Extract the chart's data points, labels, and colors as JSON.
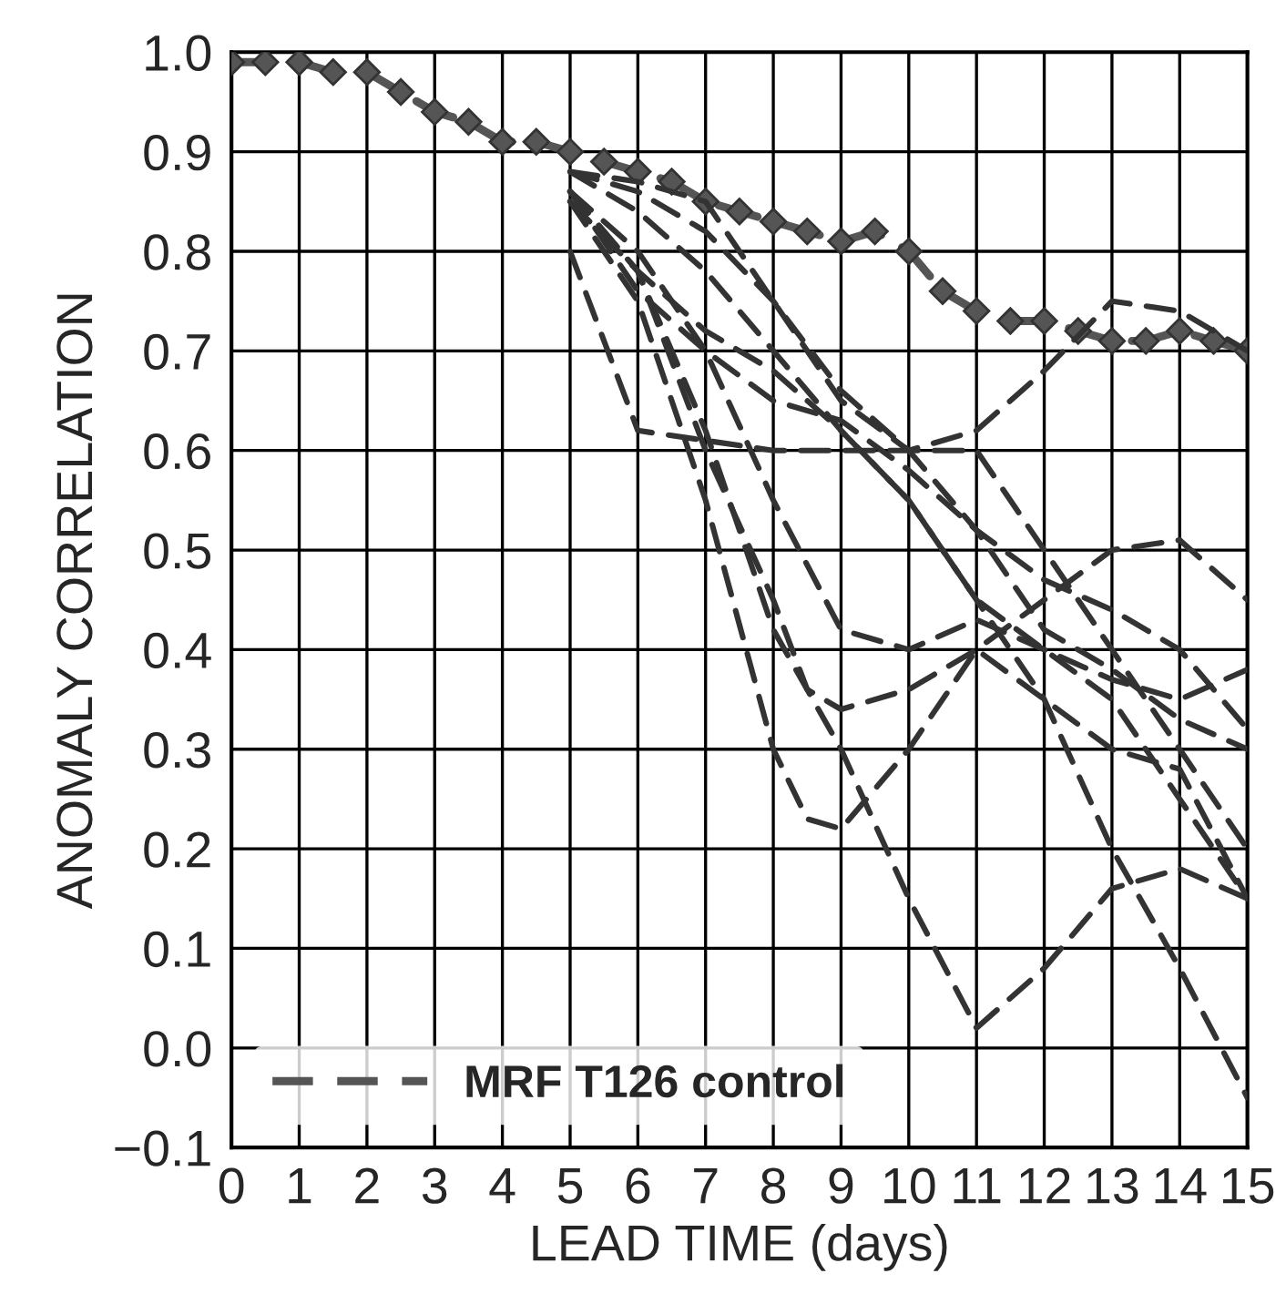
{
  "chart_data": {
    "type": "line",
    "xlabel": "LEAD TIME (days)",
    "ylabel": "ANOMALY CORRELATION",
    "xlim": [
      0,
      15
    ],
    "ylim": [
      -0.1,
      1.0
    ],
    "xticks": [
      0,
      1,
      2,
      3,
      4,
      5,
      6,
      7,
      8,
      9,
      10,
      11,
      12,
      13,
      14,
      15
    ],
    "yticks": [
      {
        "value": -0.1,
        "label": "−0.1"
      },
      {
        "value": 0,
        "label": "0.0"
      },
      {
        "value": 0.1,
        "label": "0.1"
      },
      {
        "value": 0.2,
        "label": "0.2"
      },
      {
        "value": 0.3,
        "label": "0.3"
      },
      {
        "value": 0.4,
        "label": "0.4"
      },
      {
        "value": 0.5,
        "label": "0.5"
      },
      {
        "value": 0.6,
        "label": "0.6"
      },
      {
        "value": 0.7,
        "label": "0.7"
      },
      {
        "value": 0.8,
        "label": "0.8"
      },
      {
        "value": 0.9,
        "label": "0.9"
      },
      {
        "value": 1.0,
        "label": "1.0"
      }
    ],
    "grid": true,
    "legend": "bottom left",
    "line_style": "dashed",
    "series": [
      {
        "name": "MRF T126 control",
        "color": "#555555",
        "marker": "diamond",
        "x": [
          0,
          0.5,
          1,
          1.5,
          2,
          2.5,
          3,
          3.5,
          4,
          4.5,
          5,
          5.5,
          6,
          6.5,
          7,
          7.5,
          8,
          8.5,
          9,
          9.5,
          10,
          10.5,
          11,
          11.5,
          12,
          12.5,
          13,
          13.5,
          14,
          14.5,
          15
        ],
        "values": [
          0.99,
          0.99,
          0.99,
          0.98,
          0.98,
          0.96,
          0.94,
          0.93,
          0.91,
          0.91,
          0.9,
          0.89,
          0.88,
          0.87,
          0.85,
          0.84,
          0.83,
          0.82,
          0.81,
          0.82,
          0.8,
          0.76,
          0.74,
          0.73,
          0.73,
          0.72,
          0.71,
          0.71,
          0.72,
          0.71,
          0.7
        ]
      },
      {
        "color": "#333333",
        "x": [
          5,
          6,
          7,
          8,
          9,
          10,
          11,
          12,
          13,
          14,
          15
        ],
        "values": [
          0.88,
          0.87,
          0.85,
          0.75,
          0.65,
          0.6,
          0.62,
          0.68,
          0.75,
          0.74,
          0.7
        ]
      },
      {
        "color": "#333333",
        "x": [
          5,
          6,
          7,
          8,
          9,
          10,
          11,
          12,
          13,
          14,
          15
        ],
        "values": [
          0.86,
          0.78,
          0.62,
          0.42,
          0.3,
          0.15,
          0.02,
          0.08,
          0.16,
          0.18,
          0.15
        ]
      },
      {
        "color": "#333333",
        "x": [
          5,
          6,
          7,
          8,
          8.5,
          9,
          10,
          11,
          12,
          13,
          14,
          15
        ],
        "values": [
          0.85,
          0.75,
          0.55,
          0.3,
          0.23,
          0.22,
          0.3,
          0.4,
          0.35,
          0.3,
          0.28,
          0.15
        ]
      },
      {
        "color": "#333333",
        "x": [
          5,
          6,
          7,
          8,
          8.5,
          9,
          10,
          11,
          12,
          13,
          14,
          15
        ],
        "values": [
          0.86,
          0.78,
          0.6,
          0.45,
          0.36,
          0.34,
          0.36,
          0.4,
          0.45,
          0.5,
          0.51,
          0.45
        ]
      },
      {
        "color": "#333333",
        "x": [
          5,
          6,
          7,
          8,
          9,
          10,
          11,
          12,
          13,
          14,
          15
        ],
        "values": [
          0.88,
          0.84,
          0.78,
          0.7,
          0.62,
          0.55,
          0.45,
          0.35,
          0.2,
          0.08,
          -0.05
        ]
      },
      {
        "color": "#333333",
        "x": [
          5,
          6,
          7,
          8,
          9,
          10,
          11,
          12,
          13,
          14,
          15
        ],
        "values": [
          0.86,
          0.8,
          0.7,
          0.55,
          0.42,
          0.4,
          0.43,
          0.4,
          0.37,
          0.35,
          0.38
        ]
      },
      {
        "color": "#333333",
        "x": [
          5,
          6,
          7,
          8,
          9,
          10,
          11,
          12,
          13,
          14,
          15
        ],
        "values": [
          0.8,
          0.62,
          0.61,
          0.6,
          0.6,
          0.6,
          0.6,
          0.5,
          0.4,
          0.3,
          0.2
        ]
      },
      {
        "color": "#333333",
        "x": [
          5,
          6,
          7,
          8,
          9,
          10,
          11,
          12,
          13,
          14,
          15
        ],
        "values": [
          0.85,
          0.78,
          0.72,
          0.68,
          0.62,
          0.55,
          0.45,
          0.4,
          0.35,
          0.25,
          0.15
        ]
      },
      {
        "color": "#333333",
        "x": [
          5,
          6,
          7,
          8,
          9,
          10,
          11,
          12,
          13,
          14,
          15
        ],
        "values": [
          0.86,
          0.76,
          0.7,
          0.65,
          0.63,
          0.58,
          0.52,
          0.47,
          0.44,
          0.4,
          0.32
        ]
      },
      {
        "color": "#333333",
        "x": [
          5,
          6,
          7,
          8,
          9,
          10,
          11,
          12,
          13,
          14,
          15
        ],
        "values": [
          0.88,
          0.86,
          0.82,
          0.75,
          0.66,
          0.6,
          0.52,
          0.42,
          0.38,
          0.33,
          0.3
        ]
      }
    ]
  }
}
